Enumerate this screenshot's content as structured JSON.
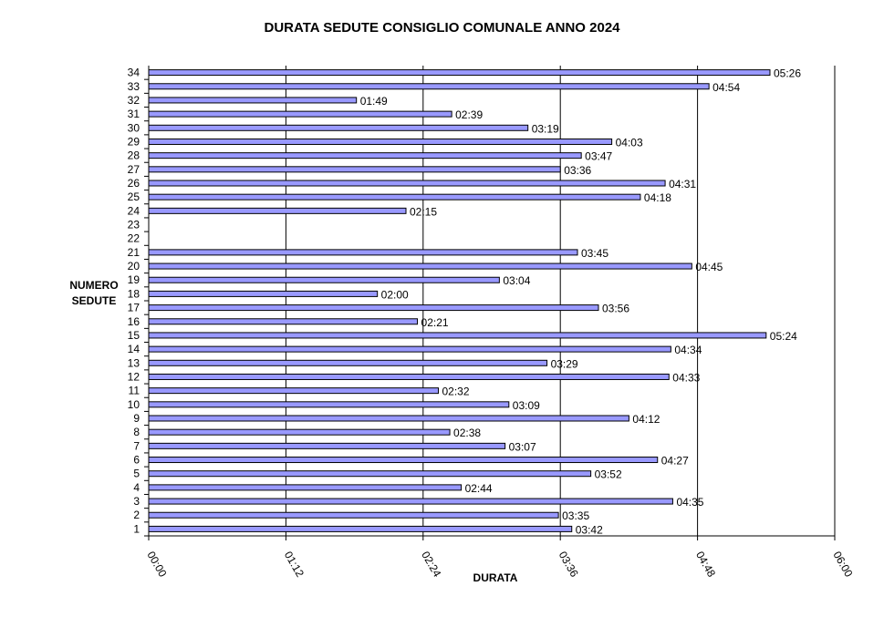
{
  "chart_data": {
    "type": "bar",
    "orientation": "horizontal",
    "title": "DURATA SEDUTE CONSIGLIO COMUNALE ANNO 2024",
    "xlabel": "DURATA",
    "ylabel": [
      "NUMERO",
      "SEDUTE"
    ],
    "x_tick_labels": [
      "00:00",
      "01:12",
      "02:24",
      "03:36",
      "04:48",
      "06:00"
    ],
    "xlim_minutes": [
      0,
      360
    ],
    "x_tick_step_minutes": 72,
    "grid": "vertical",
    "bar_color": "#9999ff",
    "bar_border_color": "#000000",
    "categories": [
      "1",
      "2",
      "3",
      "4",
      "5",
      "6",
      "7",
      "8",
      "9",
      "10",
      "11",
      "12",
      "13",
      "14",
      "15",
      "16",
      "17",
      "18",
      "19",
      "20",
      "21",
      "22",
      "23",
      "24",
      "25",
      "26",
      "27",
      "28",
      "29",
      "30",
      "31",
      "32",
      "33",
      "34"
    ],
    "values": [
      "03:42",
      "03:35",
      "04:35",
      "02:44",
      "03:52",
      "04:27",
      "03:07",
      "02:38",
      "04:12",
      "03:09",
      "02:32",
      "04:33",
      "03:29",
      "04:34",
      "05:24",
      "02:21",
      "03:56",
      "02:00",
      "03:04",
      "04:45",
      "03:45",
      null,
      null,
      "02:15",
      "04:18",
      "04:31",
      "03:36",
      "03:47",
      "04:03",
      "03:19",
      "02:39",
      "01:49",
      "04:54",
      "05:26"
    ]
  }
}
